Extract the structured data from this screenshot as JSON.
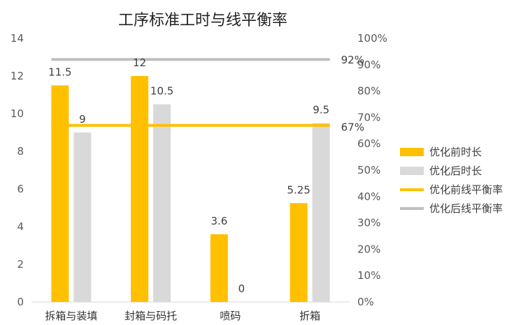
{
  "chart_data": {
    "type": "bar",
    "title": "工序标准工时与线平衡率",
    "categories": [
      "拆箱与装填",
      "封箱与码托",
      "喷码",
      "折箱"
    ],
    "series": [
      {
        "name": "优化前时长",
        "type": "bar",
        "axis": "left",
        "color": "#FFC000",
        "values": [
          11.5,
          12,
          3.6,
          5.25
        ]
      },
      {
        "name": "优化后时长",
        "type": "bar",
        "axis": "left",
        "color": "#D9D9D9",
        "values": [
          9,
          10.5,
          0,
          9.5
        ]
      },
      {
        "name": "优化前线平衡率",
        "type": "line",
        "axis": "right",
        "color": "#FFC000",
        "value": 0.67,
        "label": "67%"
      },
      {
        "name": "优化后线平衡率",
        "type": "line",
        "axis": "right",
        "color": "#BFBFBF",
        "value": 0.92,
        "label": "92%"
      }
    ],
    "left_axis": {
      "min": 0,
      "max": 14,
      "ticks": [
        "0",
        "2",
        "4",
        "6",
        "8",
        "10",
        "12",
        "14"
      ]
    },
    "right_axis": {
      "min": 0,
      "max": 1,
      "ticks": [
        "0%",
        "10%",
        "20%",
        "30%",
        "40%",
        "50%",
        "60%",
        "70%",
        "80%",
        "90%",
        "100%"
      ]
    },
    "bar_labels": [
      [
        "11.5",
        "12",
        "3.6",
        "5.25"
      ],
      [
        "9",
        "10.5",
        "0",
        "9.5"
      ]
    ],
    "legend_position": "right",
    "grid": false
  }
}
